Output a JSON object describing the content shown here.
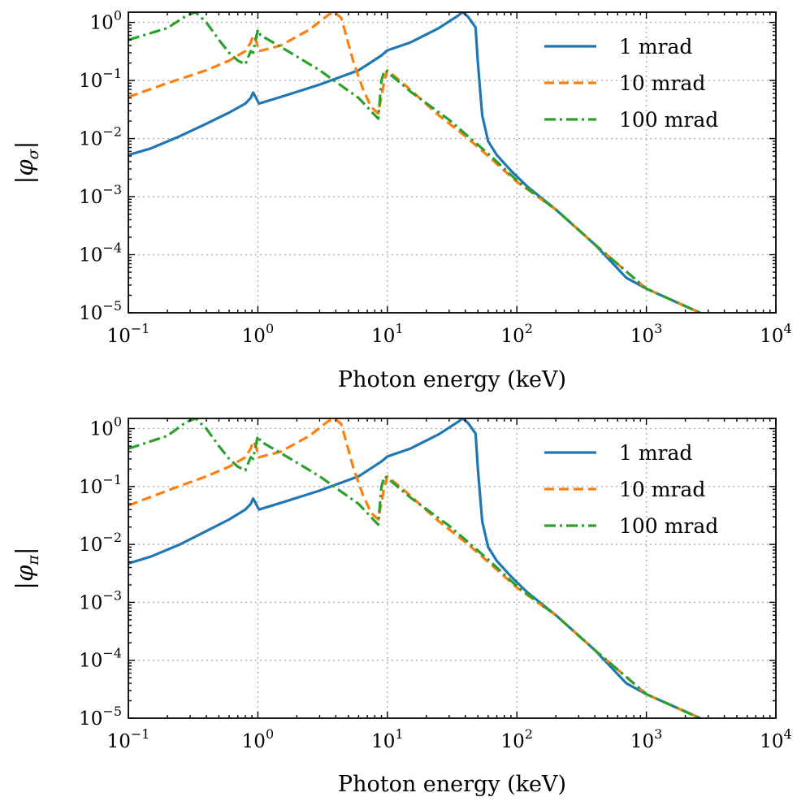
{
  "chart_data": [
    {
      "type": "line",
      "ylabel_symbol": "φ",
      "ylabel_sub": "σ",
      "xlabel": "Photon energy (keV)",
      "xscale": "log",
      "yscale": "log",
      "xlim": [
        0.1,
        10000
      ],
      "ylim": [
        1e-05,
        1.5
      ],
      "grid": true,
      "legend_position": "top-right",
      "x_ticks": [
        {
          "value": 0.1,
          "base": "10",
          "exp": "−1"
        },
        {
          "value": 1,
          "base": "10",
          "exp": "0"
        },
        {
          "value": 10,
          "base": "10",
          "exp": "1"
        },
        {
          "value": 100,
          "base": "10",
          "exp": "2"
        },
        {
          "value": 1000,
          "base": "10",
          "exp": "3"
        },
        {
          "value": 10000,
          "base": "10",
          "exp": "4"
        }
      ],
      "y_ticks": [
        {
          "value": 1,
          "base": "10",
          "exp": "0"
        },
        {
          "value": 0.1,
          "base": "10",
          "exp": "−1"
        },
        {
          "value": 0.01,
          "base": "10",
          "exp": "−2"
        },
        {
          "value": 0.001,
          "base": "10",
          "exp": "−3"
        },
        {
          "value": 0.0001,
          "base": "10",
          "exp": "−4"
        },
        {
          "value": 1e-05,
          "base": "10",
          "exp": "−5"
        }
      ],
      "series": [
        {
          "name": "1 mrad",
          "color": "#1f77b4",
          "dash": "solid",
          "points": [
            [
              0.1,
              0.0052
            ],
            [
              0.15,
              0.0068
            ],
            [
              0.25,
              0.011
            ],
            [
              0.4,
              0.018
            ],
            [
              0.6,
              0.028
            ],
            [
              0.8,
              0.04
            ],
            [
              0.88,
              0.05
            ],
            [
              0.92,
              0.062
            ],
            [
              0.96,
              0.052
            ],
            [
              1.02,
              0.04
            ],
            [
              1.5,
              0.052
            ],
            [
              3,
              0.085
            ],
            [
              6,
              0.15
            ],
            [
              9,
              0.27
            ],
            [
              10,
              0.33
            ],
            [
              15,
              0.45
            ],
            [
              25,
              0.8
            ],
            [
              35,
              1.3
            ],
            [
              38,
              1.5
            ],
            [
              42,
              1.25
            ],
            [
              48,
              0.82
            ],
            [
              50,
              0.2
            ],
            [
              54,
              0.025
            ],
            [
              60,
              0.009
            ],
            [
              70,
              0.0052
            ],
            [
              90,
              0.0028
            ],
            [
              120,
              0.0015
            ],
            [
              200,
              0.0006
            ],
            [
              400,
              0.00015
            ],
            [
              700,
              4e-05
            ],
            [
              1000,
              2.6e-05
            ],
            [
              2000,
              1.3e-05
            ],
            [
              2600,
              1e-05
            ]
          ]
        },
        {
          "name": "10 mrad",
          "color": "#ff7f0e",
          "dash": "dashed",
          "points": [
            [
              0.1,
              0.052
            ],
            [
              0.2,
              0.09
            ],
            [
              0.4,
              0.15
            ],
            [
              0.6,
              0.22
            ],
            [
              0.8,
              0.32
            ],
            [
              0.88,
              0.45
            ],
            [
              0.92,
              0.6
            ],
            [
              0.96,
              0.52
            ],
            [
              1.02,
              0.32
            ],
            [
              1.5,
              0.4
            ],
            [
              2.5,
              0.75
            ],
            [
              3.5,
              1.35
            ],
            [
              3.9,
              1.5
            ],
            [
              4.4,
              1.2
            ],
            [
              4.8,
              0.6
            ],
            [
              5.5,
              0.2
            ],
            [
              6.5,
              0.07
            ],
            [
              7.5,
              0.035
            ],
            [
              8.5,
              0.027
            ],
            [
              9.5,
              0.1
            ],
            [
              10,
              0.15
            ],
            [
              14,
              0.08
            ],
            [
              25,
              0.025
            ],
            [
              40,
              0.011
            ],
            [
              60,
              0.005
            ],
            [
              100,
              0.0018
            ],
            [
              200,
              0.0006
            ],
            [
              400,
              0.00015
            ],
            [
              1000,
              2.6e-05
            ],
            [
              2600,
              1e-05
            ]
          ]
        },
        {
          "name": "100 mrad",
          "color": "#2ca02c",
          "dash": "dashdot",
          "points": [
            [
              0.1,
              0.5
            ],
            [
              0.2,
              0.8
            ],
            [
              0.28,
              1.3
            ],
            [
              0.33,
              1.5
            ],
            [
              0.4,
              1.0
            ],
            [
              0.5,
              0.5
            ],
            [
              0.6,
              0.3
            ],
            [
              0.7,
              0.22
            ],
            [
              0.8,
              0.19
            ],
            [
              0.88,
              0.32
            ],
            [
              0.92,
              0.3
            ],
            [
              0.96,
              0.5
            ],
            [
              1.0,
              0.75
            ],
            [
              1.05,
              0.6
            ],
            [
              1.5,
              0.38
            ],
            [
              3,
              0.15
            ],
            [
              6,
              0.05
            ],
            [
              8.5,
              0.022
            ],
            [
              9,
              0.1
            ],
            [
              9.5,
              0.15
            ],
            [
              10,
              0.14
            ],
            [
              15,
              0.065
            ],
            [
              30,
              0.021
            ],
            [
              60,
              0.0055
            ],
            [
              100,
              0.0019
            ],
            [
              200,
              0.0006
            ],
            [
              400,
              0.00015
            ],
            [
              1000,
              2.6e-05
            ],
            [
              2600,
              1e-05
            ]
          ]
        }
      ]
    },
    {
      "type": "line",
      "ylabel_symbol": "φ",
      "ylabel_sub": "π",
      "xlabel": "Photon energy (keV)",
      "xscale": "log",
      "yscale": "log",
      "xlim": [
        0.1,
        10000
      ],
      "ylim": [
        1e-05,
        1.5
      ],
      "grid": true,
      "legend_position": "top-right",
      "x_ticks": [
        {
          "value": 0.1,
          "base": "10",
          "exp": "−1"
        },
        {
          "value": 1,
          "base": "10",
          "exp": "0"
        },
        {
          "value": 10,
          "base": "10",
          "exp": "1"
        },
        {
          "value": 100,
          "base": "10",
          "exp": "2"
        },
        {
          "value": 1000,
          "base": "10",
          "exp": "3"
        },
        {
          "value": 10000,
          "base": "10",
          "exp": "4"
        }
      ],
      "y_ticks": [
        {
          "value": 1,
          "base": "10",
          "exp": "0"
        },
        {
          "value": 0.1,
          "base": "10",
          "exp": "−1"
        },
        {
          "value": 0.01,
          "base": "10",
          "exp": "−2"
        },
        {
          "value": 0.001,
          "base": "10",
          "exp": "−3"
        },
        {
          "value": 0.0001,
          "base": "10",
          "exp": "−4"
        },
        {
          "value": 1e-05,
          "base": "10",
          "exp": "−5"
        }
      ],
      "series": [
        {
          "name": "1 mrad",
          "color": "#1f77b4",
          "dash": "solid",
          "points": [
            [
              0.1,
              0.0047
            ],
            [
              0.15,
              0.0062
            ],
            [
              0.25,
              0.01
            ],
            [
              0.4,
              0.017
            ],
            [
              0.6,
              0.027
            ],
            [
              0.8,
              0.04
            ],
            [
              0.88,
              0.05
            ],
            [
              0.92,
              0.062
            ],
            [
              0.96,
              0.052
            ],
            [
              1.02,
              0.04
            ],
            [
              1.5,
              0.052
            ],
            [
              3,
              0.085
            ],
            [
              6,
              0.15
            ],
            [
              9,
              0.27
            ],
            [
              10,
              0.33
            ],
            [
              15,
              0.45
            ],
            [
              25,
              0.8
            ],
            [
              35,
              1.3
            ],
            [
              38,
              1.5
            ],
            [
              42,
              1.25
            ],
            [
              48,
              0.82
            ],
            [
              50,
              0.2
            ],
            [
              54,
              0.025
            ],
            [
              60,
              0.009
            ],
            [
              70,
              0.0052
            ],
            [
              90,
              0.0028
            ],
            [
              120,
              0.0015
            ],
            [
              200,
              0.0006
            ],
            [
              400,
              0.00015
            ],
            [
              700,
              4e-05
            ],
            [
              1000,
              2.6e-05
            ],
            [
              2000,
              1.3e-05
            ],
            [
              2600,
              1e-05
            ]
          ]
        },
        {
          "name": "10 mrad",
          "color": "#ff7f0e",
          "dash": "dashed",
          "points": [
            [
              0.1,
              0.047
            ],
            [
              0.2,
              0.085
            ],
            [
              0.4,
              0.15
            ],
            [
              0.6,
              0.22
            ],
            [
              0.8,
              0.32
            ],
            [
              0.88,
              0.45
            ],
            [
              0.92,
              0.6
            ],
            [
              0.96,
              0.52
            ],
            [
              1.02,
              0.32
            ],
            [
              1.5,
              0.4
            ],
            [
              2.5,
              0.75
            ],
            [
              3.5,
              1.35
            ],
            [
              3.9,
              1.5
            ],
            [
              4.4,
              1.2
            ],
            [
              4.8,
              0.6
            ],
            [
              5.5,
              0.2
            ],
            [
              6.5,
              0.07
            ],
            [
              7.5,
              0.035
            ],
            [
              8.5,
              0.027
            ],
            [
              9.5,
              0.1
            ],
            [
              10,
              0.15
            ],
            [
              14,
              0.08
            ],
            [
              25,
              0.025
            ],
            [
              40,
              0.011
            ],
            [
              60,
              0.005
            ],
            [
              100,
              0.0018
            ],
            [
              200,
              0.0006
            ],
            [
              400,
              0.00015
            ],
            [
              1000,
              2.6e-05
            ],
            [
              2600,
              1e-05
            ]
          ]
        },
        {
          "name": "100 mrad",
          "color": "#2ca02c",
          "dash": "dashdot",
          "points": [
            [
              0.1,
              0.45
            ],
            [
              0.2,
              0.75
            ],
            [
              0.28,
              1.3
            ],
            [
              0.33,
              1.5
            ],
            [
              0.4,
              1.0
            ],
            [
              0.5,
              0.5
            ],
            [
              0.6,
              0.3
            ],
            [
              0.7,
              0.22
            ],
            [
              0.8,
              0.19
            ],
            [
              0.88,
              0.32
            ],
            [
              0.92,
              0.3
            ],
            [
              0.96,
              0.5
            ],
            [
              1.0,
              0.75
            ],
            [
              1.05,
              0.6
            ],
            [
              1.5,
              0.38
            ],
            [
              3,
              0.15
            ],
            [
              6,
              0.05
            ],
            [
              8.5,
              0.022
            ],
            [
              9,
              0.1
            ],
            [
              9.5,
              0.15
            ],
            [
              10,
              0.14
            ],
            [
              15,
              0.065
            ],
            [
              30,
              0.021
            ],
            [
              60,
              0.0055
            ],
            [
              100,
              0.0019
            ],
            [
              200,
              0.0006
            ],
            [
              400,
              0.00015
            ],
            [
              1000,
              2.6e-05
            ],
            [
              2600,
              1e-05
            ]
          ]
        }
      ]
    }
  ]
}
